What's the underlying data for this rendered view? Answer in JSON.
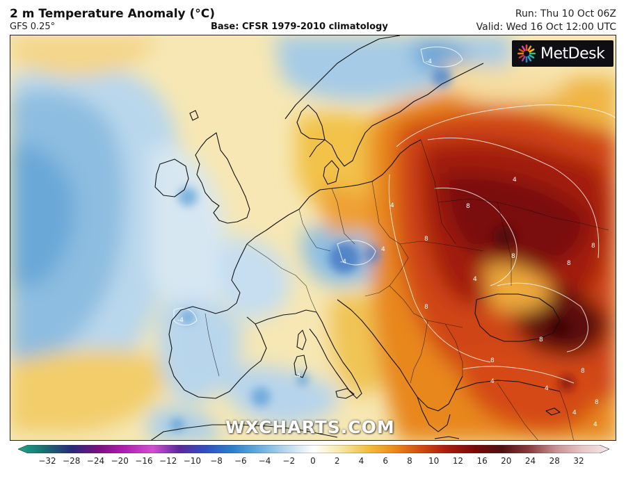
{
  "header": {
    "title": "2 m Temperature Anomaly (°C)",
    "model": "GFS 0.25°",
    "base": "Base: CFSR 1979-2010 climatology",
    "run": "Run: Thu 10 Oct 06Z",
    "valid": "Valid: Wed 16 Oct 12:00 UTC"
  },
  "logo": {
    "text": "MetDesk",
    "icon": "metdesk-starburst-icon"
  },
  "watermark": "WXCHARTS.COM",
  "legend": {
    "units": "°C",
    "ticks": [
      "−32",
      "−28",
      "−24",
      "−20",
      "−16",
      "−12",
      "−10",
      "−8",
      "−6",
      "−4",
      "−2",
      "0",
      "2",
      "4",
      "6",
      "8",
      "10",
      "12",
      "16",
      "20",
      "24",
      "28",
      "32"
    ],
    "colors": [
      "#1aa88a",
      "#1a6e6e",
      "#2a2a7a",
      "#7a1080",
      "#b020b0",
      "#d050d0",
      "#5a2a9a",
      "#3050c0",
      "#2f7fc8",
      "#6aaee0",
      "#bcd9ee",
      "#ffffff",
      "#f7e7a8",
      "#f2c040",
      "#eb8a1a",
      "#d24a10",
      "#a81a10",
      "#7a0a0a",
      "#501010",
      "#8a3a3a",
      "#c89090",
      "#e8c8c8",
      "#f4e8e8"
    ]
  },
  "map": {
    "region": "Europe",
    "contour_labels": [
      "8",
      "8",
      "8",
      "8",
      "8",
      "8",
      "8",
      "8",
      "8",
      "8",
      "4",
      "4",
      "4",
      "4",
      "4",
      "4",
      "4",
      "4",
      "-4",
      "-4",
      "-4",
      "-4"
    ]
  }
}
